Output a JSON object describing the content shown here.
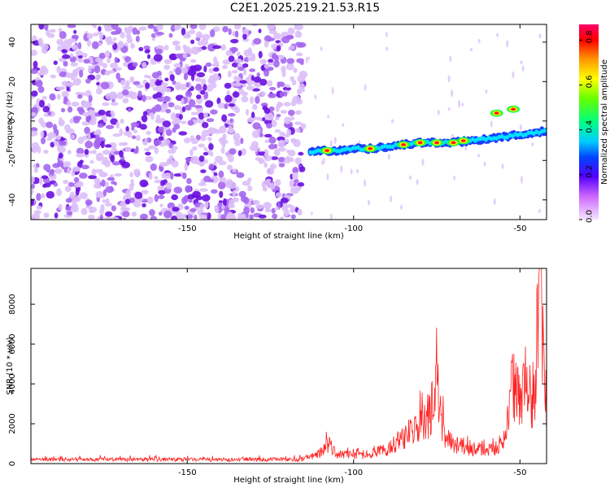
{
  "title": "C2E1.2025.219.21.53.R15",
  "chart_data": [
    {
      "type": "heatmap",
      "xlabel": "Height of straight line (km)",
      "ylabel": "Frequency (Hz)",
      "xlim": [
        -197,
        -42
      ],
      "ylim": [
        -50,
        49
      ],
      "xticks": [
        -150,
        -100,
        -50
      ],
      "yticks": [
        -40,
        -20,
        0,
        20,
        40
      ],
      "colorbar": {
        "label": "Normalized spectral amplitude",
        "range": [
          0,
          0.87
        ],
        "ticks": [
          0,
          0.2,
          0.4,
          0.6,
          0.8
        ],
        "colormap": "rainbow"
      },
      "trace": {
        "description": "strong narrowband echo",
        "x": [
          -113,
          -110,
          -105,
          -100,
          -95,
          -90,
          -85,
          -80,
          -75,
          -70,
          -65,
          -60,
          -55,
          -50,
          -45,
          -42
        ],
        "y": [
          -16,
          -15,
          -15,
          -14,
          -14,
          -13,
          -12,
          -11,
          -11,
          -11,
          -10,
          -9,
          -8,
          -7,
          -6,
          -5
        ],
        "peak_x": [
          -108,
          -95,
          -85,
          -80,
          -75,
          -70,
          -67,
          -57,
          -52
        ],
        "peak_y": [
          -15,
          -14,
          -12,
          -11,
          -11,
          -11,
          -10,
          4,
          6
        ]
      },
      "colors": {
        "low": "#cc99ff",
        "mid": "#7b20e8",
        "high": "#ff0000"
      }
    },
    {
      "type": "line",
      "xlabel": "Height of straight line (km)",
      "ylabel": "SNR (10 * v/v)",
      "xlim": [
        -197,
        -42
      ],
      "ylim": [
        0,
        9800
      ],
      "xticks": [
        -150,
        -100,
        -50
      ],
      "yticks": [
        0,
        2000,
        4000,
        6000,
        8000
      ],
      "series": [
        {
          "color": "#ff2020",
          "x": [
            -197,
            -185,
            -170,
            -155,
            -140,
            -125,
            -115,
            -110,
            -108,
            -105,
            -100,
            -95,
            -90,
            -85,
            -80,
            -77,
            -75,
            -73,
            -70,
            -65,
            -60,
            -55,
            -52,
            -50,
            -48,
            -46,
            -44,
            -43,
            -42
          ],
          "y": [
            200,
            200,
            210,
            210,
            200,
            200,
            220,
            500,
            1000,
            500,
            400,
            500,
            700,
            1400,
            1800,
            2500,
            4300,
            1500,
            1000,
            800,
            600,
            900,
            4000,
            3000,
            5000,
            2500,
            9800,
            6000,
            2500
          ]
        }
      ]
    }
  ]
}
